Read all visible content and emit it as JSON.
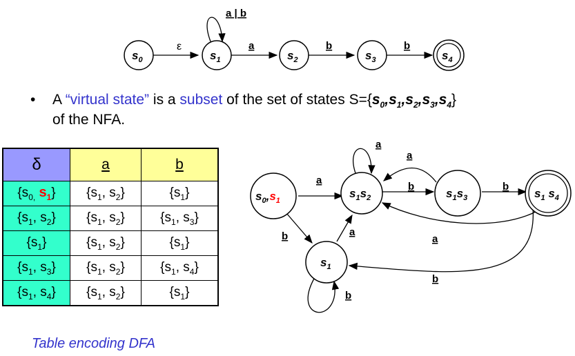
{
  "nfa": {
    "states": [
      "s0",
      "s1",
      "s2",
      "s3",
      "s4"
    ],
    "labels": {
      "eps": "ε",
      "loop": "a | b",
      "a": "a",
      "b1": "b",
      "b2": "b"
    }
  },
  "bullet": {
    "dot": "•",
    "t1": "A ",
    "t2": "“virtual state”",
    "t3": " is a ",
    "t4": "subset",
    "t5": " of the set of states S={",
    "t6": "s",
    "t7": "}",
    "line2": "of the NFA."
  },
  "table": {
    "header": [
      "δ",
      "a",
      "b"
    ],
    "rows": [
      [
        "{s0, s1}",
        "{s1, s2}",
        "{s1}"
      ],
      [
        "{s1, s2}",
        "{s1, s2}",
        "{s1, s3}"
      ],
      [
        "{s1}",
        "{s1, s2}",
        "{s1}"
      ],
      [
        "{s1, s3}",
        "{s1, s2}",
        "{s1, s4}"
      ],
      [
        "{s1, s4}",
        "{s1, s2}",
        "{s1}"
      ]
    ]
  },
  "dfa": {
    "states": [
      "s0,s1",
      "s1s2",
      "s1s3",
      "s1 s4",
      "s1"
    ],
    "edge_labels": [
      "a",
      "a",
      "b",
      "b",
      "a",
      "a",
      "b",
      "b",
      "a",
      "b"
    ]
  },
  "caption": "Table encoding DFA"
}
